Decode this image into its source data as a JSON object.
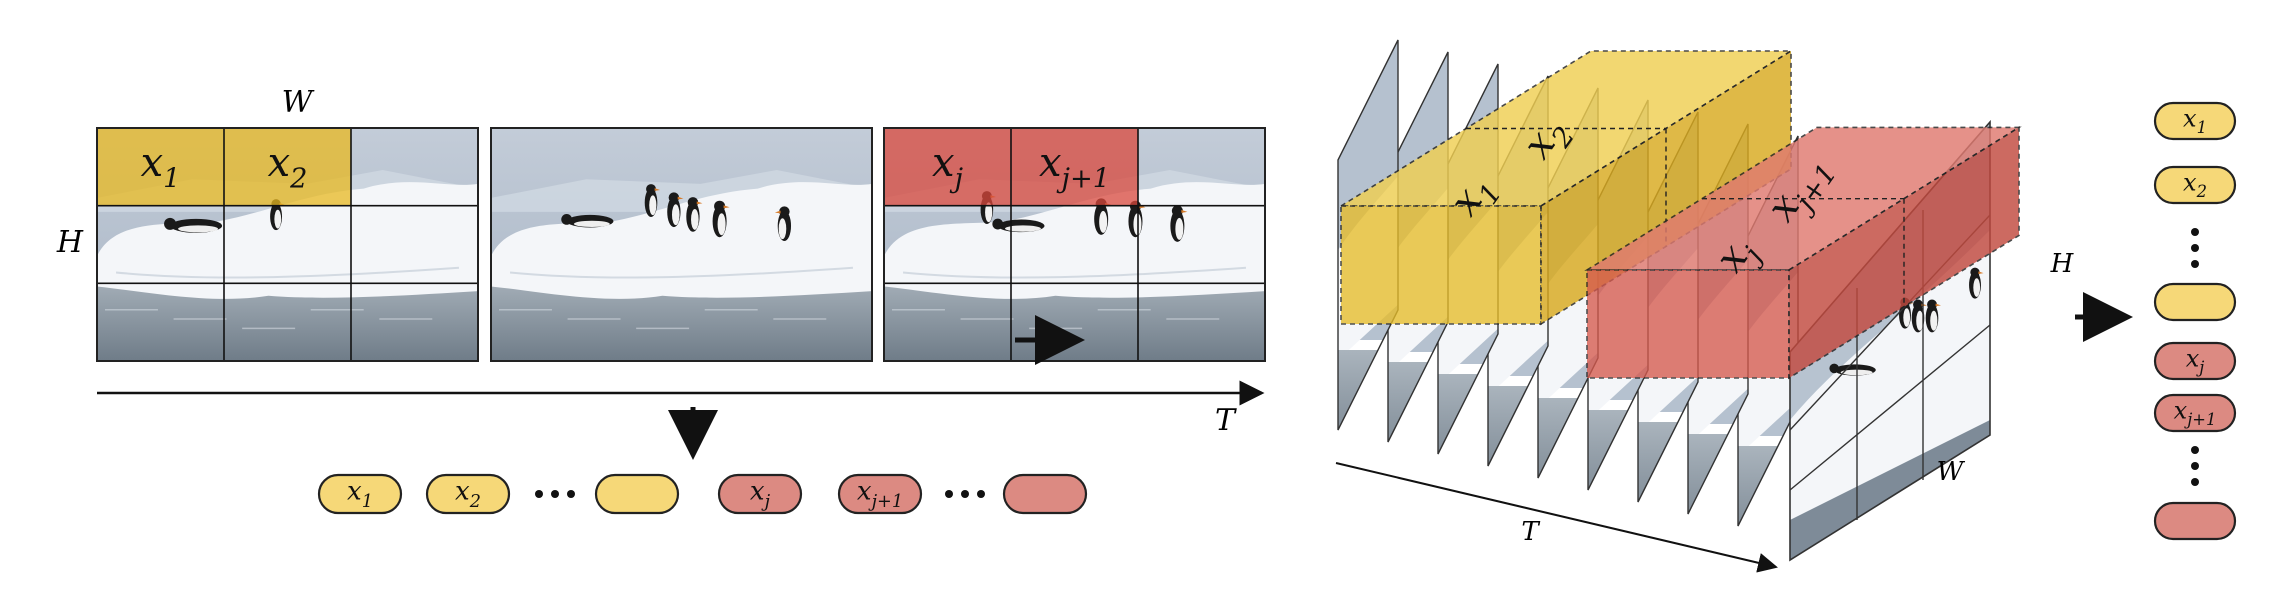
{
  "left": {
    "label_W": "W",
    "label_H": "H",
    "label_T": "T",
    "frame1_tokens": [
      {
        "base": "x",
        "sub": "1"
      },
      {
        "base": "x",
        "sub": "2"
      }
    ],
    "frame3_tokens": [
      {
        "base": "x",
        "sub": "j"
      },
      {
        "base": "x",
        "sub": "j+1"
      }
    ],
    "sequence": [
      {
        "kind": "token",
        "color": "yellow",
        "base": "x",
        "sub": "1"
      },
      {
        "kind": "token",
        "color": "yellow",
        "base": "x",
        "sub": "2"
      },
      {
        "kind": "dots"
      },
      {
        "kind": "token",
        "color": "yellow",
        "base": "",
        "sub": ""
      },
      {
        "kind": "token",
        "color": "red",
        "base": "x",
        "sub": "j"
      },
      {
        "kind": "token",
        "color": "red",
        "base": "x",
        "sub": "j+1"
      },
      {
        "kind": "dots"
      },
      {
        "kind": "token",
        "color": "red",
        "base": "",
        "sub": ""
      }
    ]
  },
  "right": {
    "label_H": "H",
    "label_W": "W",
    "label_T": "T",
    "yellow_tubes": [
      {
        "base": "x",
        "sub": "1"
      },
      {
        "base": "x",
        "sub": "2"
      }
    ],
    "red_tubes": [
      {
        "base": "x",
        "sub": "j"
      },
      {
        "base": "x",
        "sub": "j+1"
      }
    ],
    "sequence": [
      {
        "kind": "token",
        "color": "yellow",
        "base": "x",
        "sub": "1"
      },
      {
        "kind": "token",
        "color": "yellow",
        "base": "x",
        "sub": "2"
      },
      {
        "kind": "dots"
      },
      {
        "kind": "token",
        "color": "yellow",
        "base": "",
        "sub": ""
      },
      {
        "kind": "token",
        "color": "red",
        "base": "x",
        "sub": "j"
      },
      {
        "kind": "token",
        "color": "red",
        "base": "x",
        "sub": "j+1"
      },
      {
        "kind": "dots"
      },
      {
        "kind": "token",
        "color": "red",
        "base": "",
        "sub": ""
      }
    ]
  },
  "colors": {
    "yellow_fill": "#f6d878",
    "yellow_overlay": "#e8b820",
    "red_fill": "#dc8a82",
    "red_overlay": "#d9483c",
    "sky": "#aebccd",
    "ice": "#f4f6f9",
    "water": "#8e9ba8",
    "line": "#111111"
  }
}
